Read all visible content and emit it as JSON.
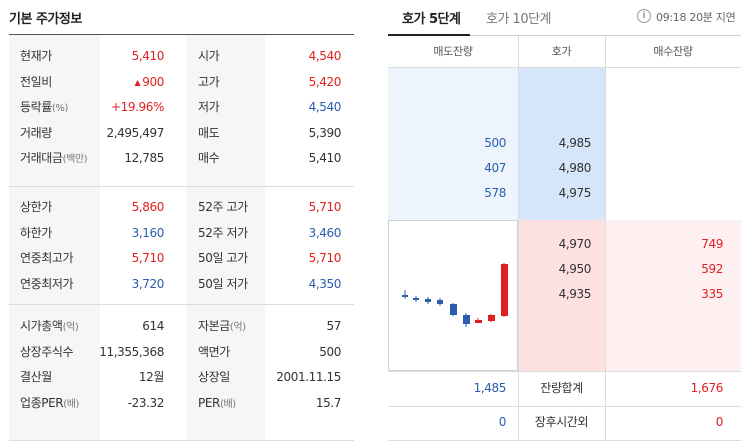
{
  "left": {
    "title": "기본 주가정보",
    "sections": [
      [
        {
          "l1": "현재가",
          "u1": "",
          "v1": "5,410",
          "c1": "up",
          "t1": "",
          "l2": "시가",
          "u2": "",
          "v2": "4,540",
          "c2": "up"
        },
        {
          "l1": "전일비",
          "u1": "",
          "v1": "900",
          "c1": "up",
          "t1": "▲",
          "l2": "고가",
          "u2": "",
          "v2": "5,420",
          "c2": "up"
        },
        {
          "l1": "등락률",
          "u1": "(%)",
          "v1": "+19.96%",
          "c1": "up",
          "t1": "",
          "l2": "저가",
          "u2": "",
          "v2": "4,540",
          "c2": "down"
        },
        {
          "l1": "거래량",
          "u1": "",
          "v1": "2,495,497",
          "c1": "neutral",
          "t1": "",
          "l2": "매도",
          "u2": "",
          "v2": "5,390",
          "c2": "neutral"
        },
        {
          "l1": "거래대금",
          "u1": "(백만)",
          "v1": "12,785",
          "c1": "neutral",
          "t1": "",
          "l2": "매수",
          "u2": "",
          "v2": "5,410",
          "c2": "neutral"
        }
      ],
      [
        {
          "l1": "상한가",
          "u1": "",
          "v1": "5,860",
          "c1": "up",
          "t1": "",
          "l2": "52주 고가",
          "u2": "",
          "v2": "5,710",
          "c2": "up"
        },
        {
          "l1": "하한가",
          "u1": "",
          "v1": "3,160",
          "c1": "down",
          "t1": "",
          "l2": "52주 저가",
          "u2": "",
          "v2": "3,460",
          "c2": "down"
        },
        {
          "l1": "연중최고가",
          "u1": "",
          "v1": "5,710",
          "c1": "up",
          "t1": "",
          "l2": "50일 고가",
          "u2": "",
          "v2": "5,710",
          "c2": "up"
        },
        {
          "l1": "연중최저가",
          "u1": "",
          "v1": "3,720",
          "c1": "down",
          "t1": "",
          "l2": "50일 저가",
          "u2": "",
          "v2": "4,350",
          "c2": "down"
        }
      ],
      [
        {
          "l1": "시가총액",
          "u1": "(억)",
          "v1": "614",
          "c1": "neutral",
          "t1": "",
          "l2": "자본금",
          "u2": "(억)",
          "v2": "57",
          "c2": "neutral"
        },
        {
          "l1": "상장주식수",
          "u1": "",
          "v1": "11,355,368",
          "c1": "neutral",
          "t1": "",
          "l2": "액면가",
          "u2": "",
          "v2": "500",
          "c2": "neutral"
        },
        {
          "l1": "결산월",
          "u1": "",
          "v1": "12월",
          "c1": "neutral",
          "t1": "",
          "l2": "상장일",
          "u2": "",
          "v2": "2001.11.15",
          "c2": "neutral"
        },
        {
          "l1": "업종PER",
          "u1": "(배)",
          "v1": "-23.32",
          "c1": "neutral",
          "t1": "",
          "l2": "PER",
          "u2": "(배)",
          "v2": "15.7",
          "c2": "neutral"
        }
      ]
    ]
  },
  "right": {
    "tab_active": "호가 5단계",
    "tab_inactive": "호가 10단계",
    "info_icon": "i",
    "time_text": "09:18 20분 지연",
    "headers": {
      "ask_qty": "매도잔량",
      "price": "호가",
      "bid_qty": "매수잔량"
    },
    "asks": [
      {
        "qty": "500",
        "price": "4,985"
      },
      {
        "qty": "407",
        "price": "4,980"
      },
      {
        "qty": "578",
        "price": "4,975"
      }
    ],
    "bids": [
      {
        "price": "4,970",
        "qty": "749"
      },
      {
        "price": "4,950",
        "qty": "592"
      },
      {
        "price": "4,935",
        "qty": "335"
      }
    ],
    "summary": {
      "ask_total": "1,485",
      "label": "잔량합계",
      "bid_total": "1,676"
    },
    "after_hours": {
      "ask": "0",
      "label": "장후시간외",
      "bid": "0"
    }
  },
  "colors": {
    "up": "#e02020",
    "down": "#2a5db0"
  }
}
